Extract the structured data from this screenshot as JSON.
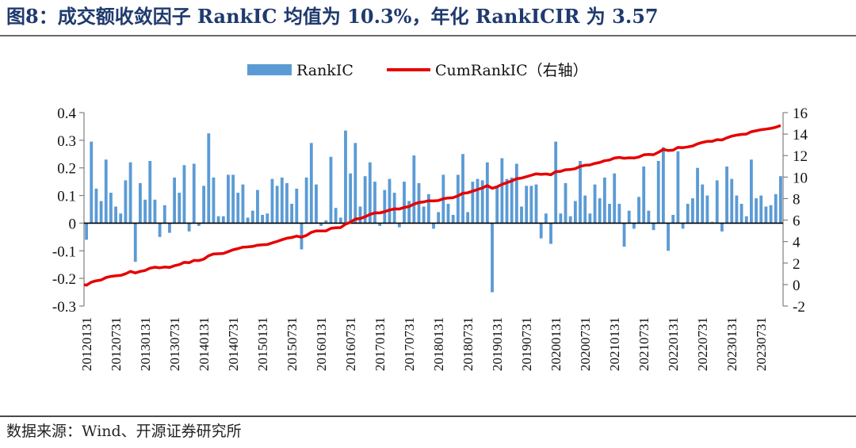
{
  "title": "图8：成交额收敛因子 RankIC 均值为 10.3%，年化 RankICIR 为 3.57",
  "source": "数据来源：Wind、开源证券研究所",
  "colors": {
    "bar": "#5b9bd5",
    "line": "#e60000",
    "title": "#1f3a6e"
  },
  "chart_data": {
    "type": "bar+line",
    "x_tick_labels": [
      "20120131",
      "20120731",
      "20130131",
      "20130731",
      "20140131",
      "20140731",
      "20150131",
      "20150731",
      "20160131",
      "20160731",
      "20170131",
      "20170731",
      "20180131",
      "20180731",
      "20190131",
      "20190731",
      "20200131",
      "20200731",
      "20210131",
      "20210731",
      "20220131",
      "20220731",
      "20230131",
      "20230731"
    ],
    "left_axis": {
      "ylim": [
        -0.3,
        0.4
      ],
      "ticks": [
        -0.3,
        -0.2,
        -0.1,
        0,
        0.1,
        0.2,
        0.3,
        0.4
      ],
      "tick_labels": [
        "-0.3",
        "-0.2",
        "-0.1",
        "0",
        "0.1",
        "0.2",
        "0.3",
        "0.4"
      ]
    },
    "right_axis": {
      "ylim": [
        -2,
        16
      ],
      "ticks": [
        -2,
        0,
        2,
        4,
        6,
        8,
        10,
        12,
        14,
        16
      ],
      "tick_labels": [
        "-2",
        "0",
        "2",
        "4",
        "6",
        "8",
        "10",
        "12",
        "14",
        "16"
      ]
    },
    "legend": {
      "position": "top-center",
      "entries": [
        "RankIC",
        "CumRankIC（右轴）"
      ]
    },
    "series": [
      {
        "name": "RankIC",
        "type": "bar",
        "axis": "left",
        "values": [
          -0.06,
          0.295,
          0.125,
          0.08,
          0.23,
          0.11,
          0.06,
          0.035,
          0.155,
          0.22,
          -0.14,
          0.145,
          0.085,
          0.225,
          0.085,
          -0.05,
          0.065,
          -0.035,
          0.165,
          0.11,
          0.21,
          -0.03,
          0.215,
          -0.01,
          0.135,
          0.325,
          0.165,
          0.025,
          0.025,
          0.175,
          0.175,
          0.11,
          0.14,
          0.02,
          0.045,
          0.12,
          0.03,
          0.035,
          0.16,
          0.135,
          0.165,
          0.145,
          0.07,
          0.125,
          -0.095,
          0.165,
          0.29,
          0.14,
          -0.01,
          0.01,
          0.24,
          0.055,
          0.02,
          0.335,
          0.18,
          0.29,
          0.06,
          0.17,
          0.22,
          0.15,
          -0.01,
          0.12,
          0.16,
          0.11,
          -0.015,
          0.15,
          0.08,
          0.245,
          0.145,
          0.06,
          0.105,
          -0.02,
          0.04,
          0.175,
          0.07,
          0.03,
          0.175,
          0.25,
          0.04,
          0.15,
          0.16,
          0.155,
          0.22,
          -0.25,
          0.13,
          0.235,
          0.16,
          0.165,
          0.215,
          0.06,
          0.135,
          0.135,
          0.14,
          -0.055,
          0.035,
          -0.075,
          0.295,
          0.035,
          0.145,
          0.025,
          0.08,
          0.225,
          0.1,
          0.035,
          0.14,
          0.09,
          0.165,
          0.07,
          0.18,
          0.07,
          -0.085,
          0.045,
          -0.02,
          0.095,
          0.205,
          0.045,
          -0.025,
          0.225,
          0.275,
          -0.1,
          0.03,
          0.26,
          -0.02,
          0.07,
          0.09,
          0.2,
          0.14,
          0.1,
          0.005,
          0.155,
          -0.03,
          0.205,
          0.16,
          0.1,
          0.07,
          0.025,
          0.23,
          0.09,
          0.1,
          0.06,
          0.065,
          0.105,
          0.17
        ]
      },
      {
        "name": "CumRankIC（右轴）",
        "type": "line",
        "axis": "right",
        "start": 0,
        "end": 14.8
      }
    ]
  }
}
